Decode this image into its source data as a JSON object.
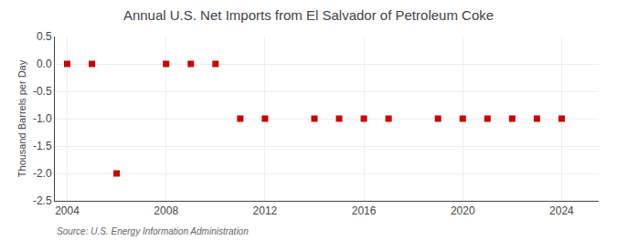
{
  "chart_data": {
    "type": "scatter",
    "title": "Annual U.S. Net Imports from El Salvador of Petroleum Coke",
    "y_label": "Thousand Barrels per Day",
    "annotations": [
      "Source: U.S. Energy Information Administration"
    ],
    "x": [
      2004,
      2005,
      2006,
      2008,
      2009,
      2010,
      2011,
      2012,
      2014,
      2015,
      2016,
      2017,
      2019,
      2020,
      2021,
      2022,
      2023,
      2024
    ],
    "values": [
      0,
      0,
      -2,
      0,
      0,
      0,
      -1,
      -1,
      -1,
      -1,
      -1,
      -1,
      -1,
      -1,
      -1,
      -1,
      -1,
      -1
    ],
    "xlim": [
      2003.5,
      2025.5
    ],
    "ylim": [
      -2.5,
      0.5
    ],
    "xticks": [
      2004,
      2008,
      2012,
      2016,
      2020,
      2024
    ],
    "yticks": [
      0.5,
      {
        "value": 0,
        "label": "0.0"
      },
      -0.5,
      {
        "value": -1,
        "label": "-1.0"
      },
      -1.5,
      {
        "value": -2,
        "label": "-2.0"
      },
      -2.5
    ],
    "color": "#CC0000",
    "marker": "square",
    "grid": true
  }
}
